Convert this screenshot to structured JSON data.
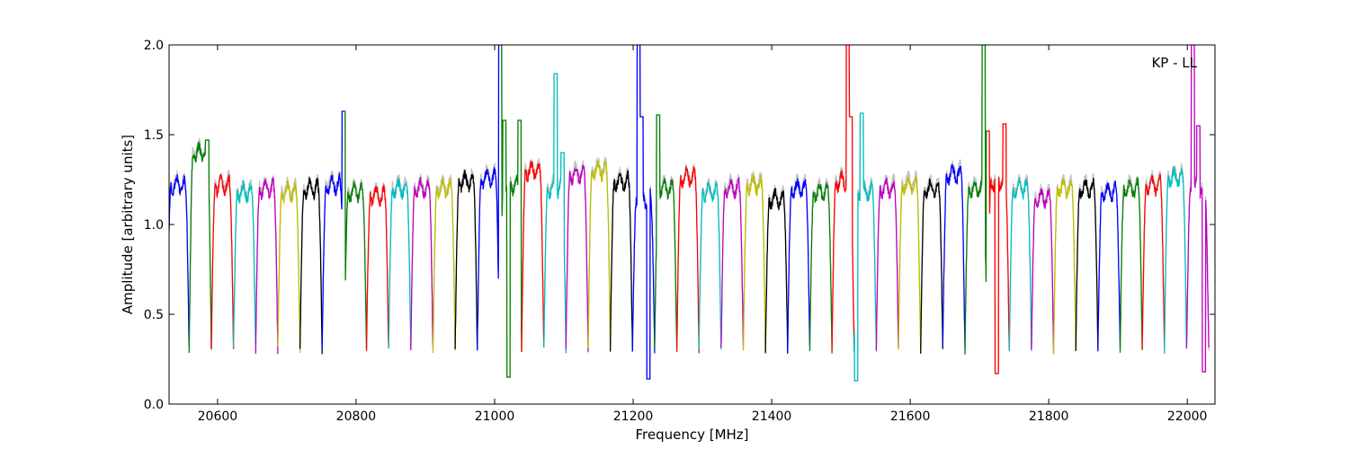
{
  "chart_data": {
    "type": "line",
    "annotation": "KP - LL",
    "xlabel": "Frequency [MHz]",
    "ylabel": "Amplitude [arbitrary units]",
    "xlim": [
      20530,
      22040
    ],
    "ylim": [
      0.0,
      2.0
    ],
    "xticks": [
      20600,
      20800,
      21000,
      21200,
      21400,
      21600,
      21800,
      22000
    ],
    "yticks": [
      0.0,
      0.5,
      1.0,
      1.5,
      2.0
    ],
    "xtick_labels": [
      "20600",
      "20800",
      "21000",
      "21200",
      "21400",
      "21600",
      "21800",
      "22000"
    ],
    "ytick_labels": [
      "0.0",
      "0.5",
      "1.0",
      "1.5",
      "2.0"
    ],
    "grid": false,
    "series_colors": [
      "#0000ff",
      "#008000",
      "#ff0000",
      "#00bfbf",
      "#bf00bf",
      "#bfbf00",
      "#000000"
    ],
    "background_trace_color": "#c0c0c0",
    "channel_width_mhz": 32,
    "channel_start_mhz": 20527,
    "channel_count": 47,
    "channel_plateau": [
      1.22,
      1.4,
      1.22,
      1.18,
      1.2,
      1.18,
      1.2,
      1.22,
      1.18,
      1.16,
      1.2,
      1.2,
      1.2,
      1.24,
      1.26,
      1.22,
      1.3,
      1.2,
      1.28,
      1.3,
      1.24,
      1.14,
      1.2,
      1.26,
      1.18,
      1.2,
      1.22,
      1.14,
      1.2,
      1.18,
      1.24,
      1.18,
      1.2,
      1.22,
      1.2,
      1.28,
      1.2,
      1.24,
      1.2,
      1.15,
      1.2,
      1.2,
      1.18,
      1.2,
      1.22,
      1.26,
      1.2
    ],
    "channel_edge_min": 0.3,
    "spikes": [
      {
        "x": 20585,
        "y": 1.47
      },
      {
        "x": 20782,
        "y": 1.63
      },
      {
        "x": 21008,
        "y": 2.0
      },
      {
        "x": 21014,
        "y": 1.58
      },
      {
        "x": 21020,
        "y": 0.15
      },
      {
        "x": 21036,
        "y": 1.58
      },
      {
        "x": 21088,
        "y": 1.84
      },
      {
        "x": 21098,
        "y": 1.4
      },
      {
        "x": 21208,
        "y": 2.0
      },
      {
        "x": 21212,
        "y": 1.6
      },
      {
        "x": 21222,
        "y": 0.14
      },
      {
        "x": 21236,
        "y": 1.61
      },
      {
        "x": 21510,
        "y": 2.0
      },
      {
        "x": 21514,
        "y": 1.6
      },
      {
        "x": 21522,
        "y": 0.13
      },
      {
        "x": 21530,
        "y": 1.62
      },
      {
        "x": 21706,
        "y": 2.0
      },
      {
        "x": 21712,
        "y": 1.52
      },
      {
        "x": 21725,
        "y": 0.17
      },
      {
        "x": 21736,
        "y": 1.56
      },
      {
        "x": 22008,
        "y": 2.0
      },
      {
        "x": 22016,
        "y": 1.55
      },
      {
        "x": 22024,
        "y": 0.18
      },
      {
        "x": 22036,
        "y": 1.55
      }
    ]
  }
}
